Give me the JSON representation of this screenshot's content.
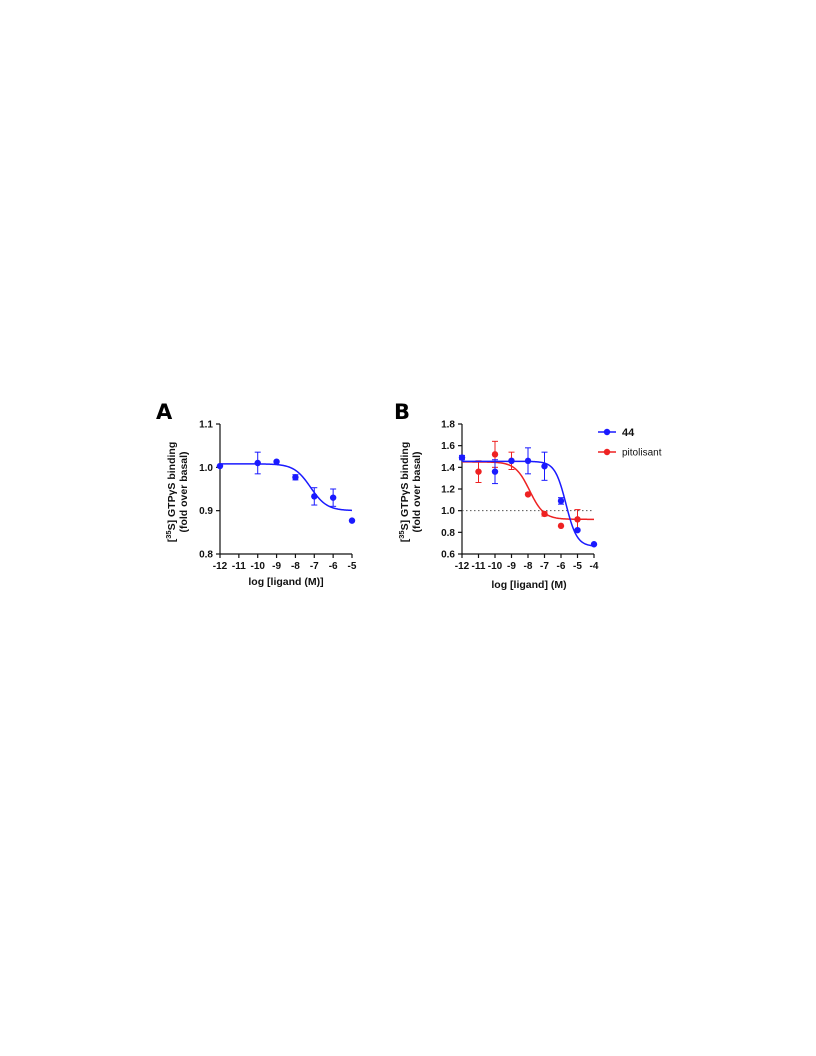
{
  "chart_data": [
    {
      "panel_label": "A",
      "type": "scatter",
      "xlabel": "log [ligand (M)]",
      "ylabel_line1": "[35S] GTPγS binding",
      "ylabel_line2": "(fold over basal)",
      "xlim": [
        -12,
        -5
      ],
      "ylim": [
        0.8,
        1.1
      ],
      "xticks": [
        -12,
        -11,
        -10,
        -9,
        -8,
        -7,
        -6,
        -5
      ],
      "xtick_labels": [
        "-12",
        "-11",
        "-10",
        "-9",
        "-8",
        "-7",
        "-6",
        "-5"
      ],
      "yticks": [
        0.8,
        0.9,
        1.0,
        1.1
      ],
      "ytick_labels": [
        "0.8",
        "0.9",
        "1.0",
        "1.1"
      ],
      "series": [
        {
          "color": "#1a1aff",
          "x": [
            -12,
            -10,
            -9,
            -8,
            -7,
            -6,
            -5
          ],
          "y": [
            1.003,
            1.01,
            1.013,
            0.977,
            0.933,
            0.93,
            0.877
          ],
          "error": [
            0,
            0.025,
            0,
            0.006,
            0.02,
            0.02,
            0
          ],
          "fit": {
            "top": 1.008,
            "bottom": 0.9,
            "logIC50": -7.2,
            "hill": -1
          }
        }
      ],
      "legend": null
    },
    {
      "panel_label": "B",
      "type": "scatter",
      "xlabel": "log [ligand] (M)",
      "ylabel_line1": "[35S] GTPγS binding",
      "ylabel_line2": "(fold over basal)",
      "xlim": [
        -12,
        -4
      ],
      "ylim": [
        0.6,
        1.8
      ],
      "xticks": [
        -12,
        -11,
        -10,
        -9,
        -8,
        -7,
        -6,
        -5,
        -4
      ],
      "xtick_labels": [
        "-12",
        "-11",
        "-10",
        "-9",
        "-8",
        "-7",
        "-6",
        "-5",
        "-4"
      ],
      "yticks": [
        0.6,
        0.8,
        1.0,
        1.2,
        1.4,
        1.6,
        1.8
      ],
      "ytick_labels": [
        "0.6",
        "0.8",
        "1.0",
        "1.2",
        "1.4",
        "1.6",
        "1.8"
      ],
      "reference_line": {
        "y": 1.0,
        "style": "dotted",
        "color": "#555555"
      },
      "series": [
        {
          "name": "pitolisant",
          "color": "#ee2222",
          "x": [
            -11,
            -10,
            -9,
            -8,
            -7,
            -6,
            -5
          ],
          "y": [
            1.36,
            1.52,
            1.46,
            1.15,
            0.97,
            0.86,
            0.92
          ],
          "error": [
            0.1,
            0.12,
            0.08,
            0,
            0.02,
            0,
            0.09
          ],
          "fit": {
            "top": 1.45,
            "bottom": 0.92,
            "logIC50": -7.9,
            "hill": -1
          }
        },
        {
          "name": "44",
          "color": "#1a1aff",
          "x": [
            -12,
            -10,
            -9,
            -8,
            -7,
            -6,
            -5,
            -4
          ],
          "y": [
            1.49,
            1.36,
            1.46,
            1.46,
            1.41,
            1.09,
            0.82,
            0.69
          ],
          "error": [
            0.02,
            0.11,
            0,
            0.12,
            0.13,
            0.03,
            0,
            0
          ],
          "fit": {
            "top": 1.455,
            "bottom": 0.67,
            "logIC50": -5.7,
            "hill": -1.3
          }
        }
      ],
      "legend": [
        "44",
        "pitolisant"
      ],
      "legend_position": "top-right"
    }
  ]
}
